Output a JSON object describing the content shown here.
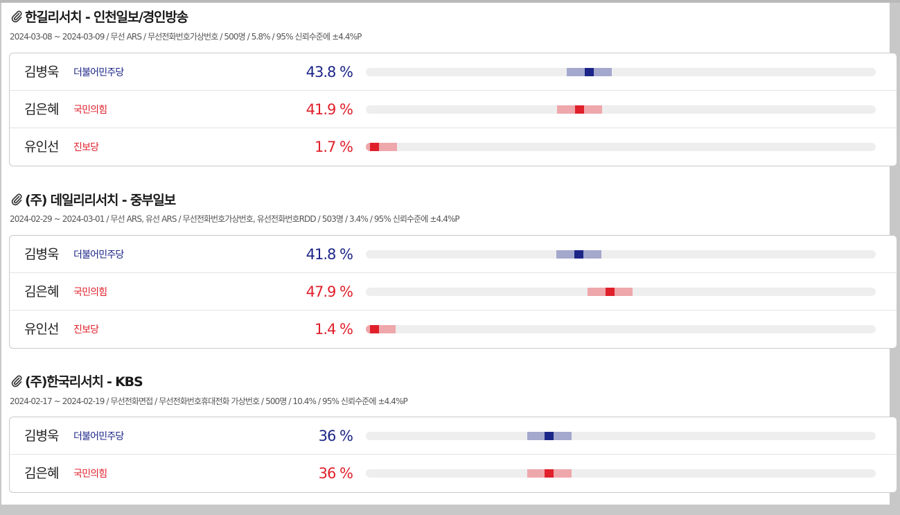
{
  "colors": {
    "democratic": "#1b2587",
    "democratic_range": "#a3a8cc",
    "ppp": "#e0202b",
    "ppp_range": "#eea7ab",
    "progressive": "#e0202b",
    "progressive_range": "#eea7ab"
  },
  "polls": [
    {
      "title": "한길리서치 - 인천일보/경인방송",
      "meta": "2024-03-08 ~ 2024-03-09 / 무선 ARS / 무선전화번호가상번호 / 500명 / 5.8% / 95% 신뢰수준에 ±4.4%P",
      "margin": 4.4,
      "candidates": [
        {
          "name": "김병욱",
          "party": "더불어민주당",
          "party_key": "democratic",
          "pct_label": "43.8 %",
          "value": 43.8
        },
        {
          "name": "김은혜",
          "party": "국민의힘",
          "party_key": "ppp",
          "pct_label": "41.9 %",
          "value": 41.9
        },
        {
          "name": "유인선",
          "party": "진보당",
          "party_key": "progressive",
          "pct_label": "1.7 %",
          "value": 1.7
        }
      ]
    },
    {
      "title": "(주) 데일리리서치 - 중부일보",
      "meta": "2024-02-29 ~ 2024-03-01 / 무선 ARS, 유선 ARS / 무선전화번호가상번호, 유선전화번호RDD / 503명 / 3.4% / 95% 신뢰수준에 ±4.4%P",
      "margin": 4.4,
      "candidates": [
        {
          "name": "김병욱",
          "party": "더불어민주당",
          "party_key": "democratic",
          "pct_label": "41.8 %",
          "value": 41.8
        },
        {
          "name": "김은혜",
          "party": "국민의힘",
          "party_key": "ppp",
          "pct_label": "47.9 %",
          "value": 47.9
        },
        {
          "name": "유인선",
          "party": "진보당",
          "party_key": "progressive",
          "pct_label": "1.4 %",
          "value": 1.4
        }
      ]
    },
    {
      "title": "(주)한국리서치 - KBS",
      "meta": "2024-02-17 ~ 2024-02-19 / 무선전화면접 / 무선전화번호휴대전화 가상번호 / 500명 / 10.4% / 95% 신뢰수준에 ±4.4%P",
      "margin": 4.4,
      "candidates": [
        {
          "name": "김병욱",
          "party": "더불어민주당",
          "party_key": "democratic",
          "pct_label": "36 %",
          "value": 36
        },
        {
          "name": "김은혜",
          "party": "국민의힘",
          "party_key": "ppp",
          "pct_label": "36 %",
          "value": 36
        }
      ]
    }
  ]
}
